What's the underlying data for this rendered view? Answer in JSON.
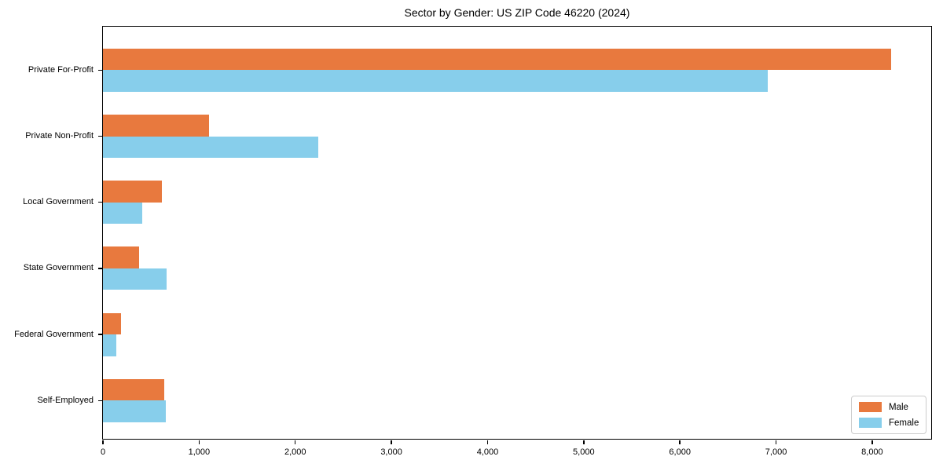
{
  "chart_data": {
    "type": "bar",
    "orientation": "horizontal",
    "title": "Sector by Gender: US ZIP Code 46220 (2024)",
    "xlabel": "",
    "ylabel": "",
    "categories": [
      "Private For-Profit",
      "Private Non-Profit",
      "Local Government",
      "State Government",
      "Federal Government",
      "Self-Employed"
    ],
    "series": [
      {
        "name": "Male",
        "color": "#E8793E",
        "values": [
          8200,
          1100,
          610,
          380,
          185,
          640
        ]
      },
      {
        "name": "Female",
        "color": "#87CEEB",
        "values": [
          6910,
          2240,
          410,
          660,
          135,
          650
        ]
      }
    ],
    "xlim": [
      0,
      8630
    ],
    "x_tick_values": [
      0,
      1000,
      2000,
      3000,
      4000,
      5000,
      6000,
      7000,
      8000
    ],
    "x_tick_labels": [
      "0",
      "1,000",
      "2,000",
      "3,000",
      "4,000",
      "5,000",
      "6,000",
      "7,000",
      "8,000"
    ],
    "grid": false,
    "legend_position": "lower right",
    "frame": true
  }
}
